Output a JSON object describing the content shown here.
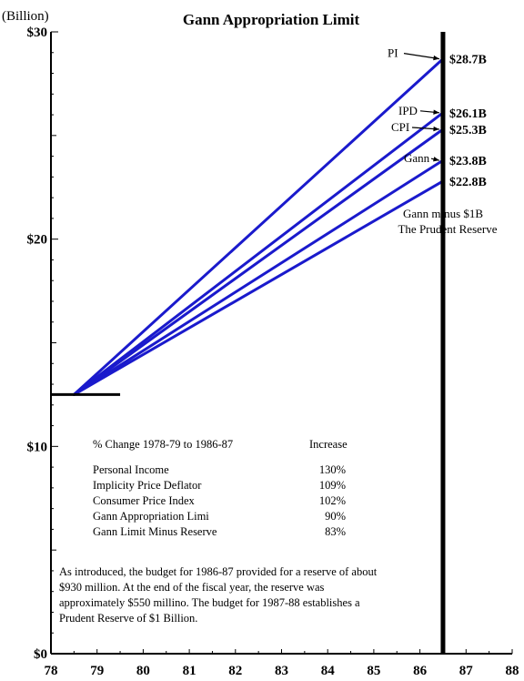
{
  "chart_data": {
    "type": "line",
    "title": "Gann Appropriation Limit",
    "y_unit_label": "(Billion)",
    "xlim": [
      78,
      88
    ],
    "ylim": [
      0,
      30
    ],
    "x_ticks": [
      "78",
      "79",
      "80",
      "81",
      "82",
      "83",
      "84",
      "85",
      "86",
      "87",
      "88"
    ],
    "y_ticks": [
      {
        "value": 0,
        "label": "$0"
      },
      {
        "value": 10,
        "label": "$10"
      },
      {
        "value": 20,
        "label": "$20"
      },
      {
        "value": 30,
        "label": "$30"
      }
    ],
    "y_minor_step": 1,
    "y_mid_step": 5,
    "grid": false,
    "base_line": {
      "x": [
        78,
        79.5
      ],
      "y": 12.5
    },
    "marker_line_x": 86.5,
    "series": [
      {
        "name": "PI",
        "x": [
          78.5,
          86.5
        ],
        "y": [
          12.5,
          28.7
        ],
        "value_label": "$28.7B"
      },
      {
        "name": "IPD",
        "x": [
          78.5,
          86.5
        ],
        "y": [
          12.5,
          26.1
        ],
        "value_label": "$26.1B"
      },
      {
        "name": "CPI",
        "x": [
          78.5,
          86.5
        ],
        "y": [
          12.5,
          25.3
        ],
        "value_label": "$25.3B"
      },
      {
        "name": "Gann",
        "x": [
          78.5,
          86.5
        ],
        "y": [
          12.5,
          23.8
        ],
        "value_label": "$23.8B"
      },
      {
        "name": "",
        "x": [
          78.5,
          86.5
        ],
        "y": [
          12.5,
          22.8
        ],
        "value_label": "$22.8B"
      }
    ],
    "annotation_lines": [
      "Gann minus $1B",
      "The Prudent Reserve"
    ],
    "line_color": "#1a1acc"
  },
  "table": {
    "header_left": "% Change 1978-79 to 1986-87",
    "header_right": "Increase",
    "rows": [
      {
        "label": "Personal Income",
        "value": "130%"
      },
      {
        "label": "Implicity Price Deflator",
        "value": "109%"
      },
      {
        "label": "Consumer Price Index",
        "value": "102%"
      },
      {
        "label": "Gann Appropriation Limi",
        "value": "90%"
      },
      {
        "label": "Gann Limit Minus Reserve",
        "value": "83%"
      }
    ]
  },
  "note_lines": [
    "As introduced, the budget for 1986-87 provided for a reserve of about",
    "$930 million. At the end of the fiscal year, the reserve was",
    "approximately $550 millino. The budget for 1987-88 establishes a",
    "Prudent Reserve of $1 Billion."
  ]
}
